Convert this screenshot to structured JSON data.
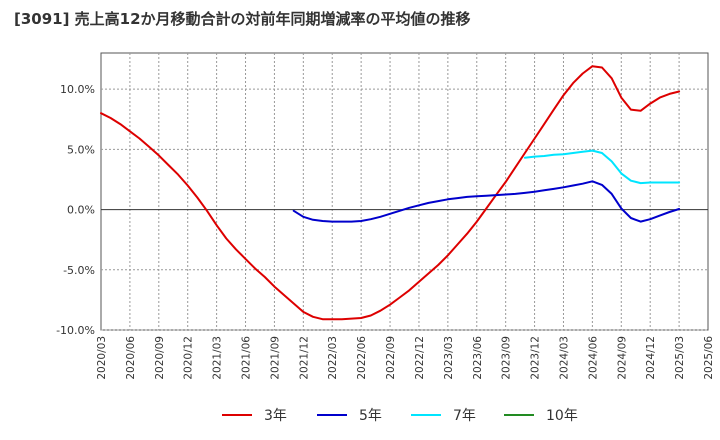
{
  "title": "[3091]  売上高12か月移動合計の対前年同期増減率の平均値の推移",
  "chart_data": {
    "type": "line",
    "title": "[3091]  売上高12か月移動合計の対前年同期増減率の平均値の推移",
    "xlabel": "",
    "ylabel": "",
    "ylim": [
      -10,
      13
    ],
    "xlim": [
      "2020/03",
      "2025/06"
    ],
    "grid": true,
    "legend_position": "bottom",
    "x_ticks": [
      "2020/03",
      "2020/06",
      "2020/09",
      "2020/12",
      "2021/03",
      "2021/06",
      "2021/09",
      "2021/12",
      "2022/03",
      "2022/06",
      "2022/09",
      "2022/12",
      "2023/03",
      "2023/06",
      "2023/09",
      "2023/12",
      "2024/03",
      "2024/06",
      "2024/09",
      "2024/12",
      "2025/03",
      "2025/06"
    ],
    "y_ticks": [
      "10.0%",
      "5.0%",
      "0.0%",
      "-5.0%",
      "-10.0%"
    ],
    "y_tick_values": [
      10,
      5,
      0,
      -5,
      -10
    ],
    "series": [
      {
        "name": "3年",
        "color": "#dd0000",
        "x": [
          "2020/03",
          "2020/04",
          "2020/05",
          "2020/06",
          "2020/07",
          "2020/08",
          "2020/09",
          "2020/10",
          "2020/11",
          "2020/12",
          "2021/01",
          "2021/02",
          "2021/03",
          "2021/04",
          "2021/05",
          "2021/06",
          "2021/07",
          "2021/08",
          "2021/09",
          "2021/10",
          "2021/11",
          "2021/12",
          "2022/01",
          "2022/02",
          "2022/03",
          "2022/04",
          "2022/05",
          "2022/06",
          "2022/07",
          "2022/08",
          "2022/09",
          "2022/10",
          "2022/11",
          "2022/12",
          "2023/01",
          "2023/02",
          "2023/03",
          "2023/04",
          "2023/05",
          "2023/06",
          "2023/07",
          "2023/08",
          "2023/09",
          "2023/10",
          "2023/11",
          "2023/12",
          "2024/01",
          "2024/02",
          "2024/03",
          "2024/04",
          "2024/05",
          "2024/06",
          "2024/07",
          "2024/08",
          "2024/09",
          "2024/10",
          "2024/11",
          "2024/12",
          "2025/01",
          "2025/02",
          "2025/03"
        ],
        "values": [
          8.0,
          7.6,
          7.1,
          6.5,
          5.9,
          5.2,
          4.5,
          3.7,
          2.9,
          2.0,
          1.0,
          -0.1,
          -1.3,
          -2.4,
          -3.3,
          -4.1,
          -4.9,
          -5.6,
          -6.4,
          -7.1,
          -7.8,
          -8.5,
          -8.9,
          -9.1,
          -9.1,
          -9.1,
          -9.05,
          -9.0,
          -8.8,
          -8.4,
          -7.9,
          -7.3,
          -6.7,
          -6.0,
          -5.3,
          -4.6,
          -3.8,
          -2.9,
          -2.0,
          -1.0,
          0.1,
          1.2,
          2.3,
          3.5,
          4.7,
          5.9,
          7.1,
          8.3,
          9.5,
          10.5,
          11.3,
          11.9,
          11.8,
          10.9,
          9.3,
          8.3,
          8.2,
          8.8,
          9.3,
          9.6,
          9.8
        ]
      },
      {
        "name": "5年",
        "color": "#0000cc",
        "x": [
          "2021/11",
          "2021/12",
          "2022/01",
          "2022/02",
          "2022/03",
          "2022/04",
          "2022/05",
          "2022/06",
          "2022/07",
          "2022/08",
          "2022/09",
          "2022/10",
          "2022/11",
          "2022/12",
          "2023/01",
          "2023/02",
          "2023/03",
          "2023/04",
          "2023/05",
          "2023/06",
          "2023/07",
          "2023/08",
          "2023/09",
          "2023/10",
          "2023/11",
          "2023/12",
          "2024/01",
          "2024/02",
          "2024/03",
          "2024/04",
          "2024/05",
          "2024/06",
          "2024/07",
          "2024/08",
          "2024/09",
          "2024/10",
          "2024/11",
          "2024/12",
          "2025/01",
          "2025/02",
          "2025/03"
        ],
        "values": [
          -0.1,
          -0.6,
          -0.85,
          -0.95,
          -1.0,
          -1.0,
          -1.0,
          -0.95,
          -0.8,
          -0.6,
          -0.35,
          -0.1,
          0.15,
          0.35,
          0.55,
          0.7,
          0.85,
          0.95,
          1.05,
          1.1,
          1.15,
          1.2,
          1.25,
          1.3,
          1.38,
          1.48,
          1.6,
          1.72,
          1.85,
          2.0,
          2.15,
          2.35,
          2.05,
          1.3,
          0.1,
          -0.7,
          -1.0,
          -0.8,
          -0.5,
          -0.2,
          0.05
        ]
      },
      {
        "name": "7年",
        "color": "#00e5ff",
        "x": [
          "2023/11",
          "2023/12",
          "2024/01",
          "2024/02",
          "2024/03",
          "2024/04",
          "2024/05",
          "2024/06",
          "2024/07",
          "2024/08",
          "2024/09",
          "2024/10",
          "2024/11",
          "2024/12",
          "2025/01",
          "2025/02",
          "2025/03"
        ],
        "values": [
          4.3,
          4.4,
          4.45,
          4.55,
          4.6,
          4.7,
          4.8,
          4.9,
          4.7,
          4.0,
          3.0,
          2.4,
          2.2,
          2.25,
          2.25,
          2.25,
          2.25
        ]
      },
      {
        "name": "10年",
        "color": "#228b22",
        "x": [],
        "values": []
      }
    ]
  }
}
